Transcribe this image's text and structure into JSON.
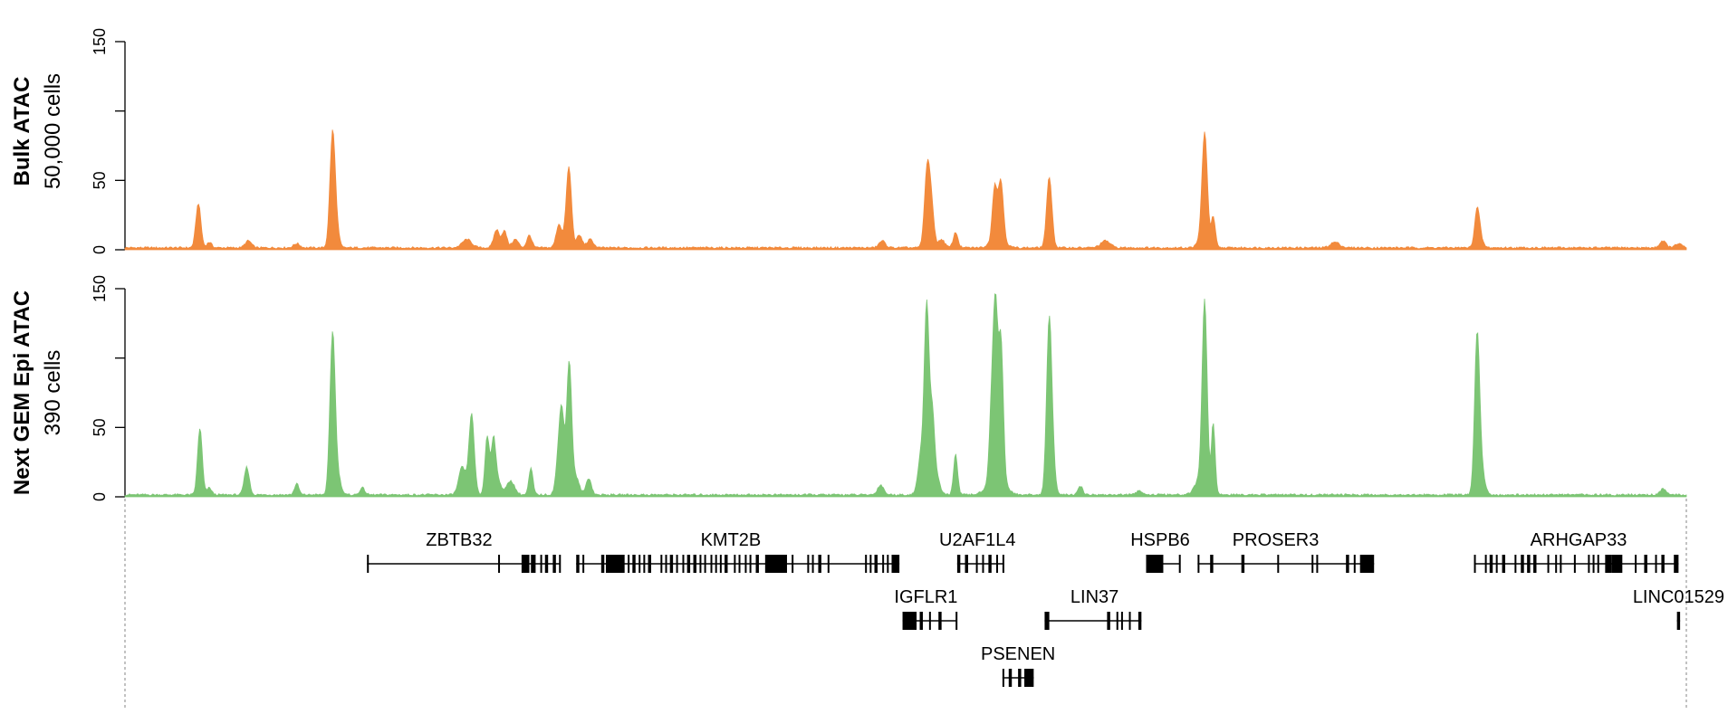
{
  "chart_data": [
    {
      "type": "area",
      "title": "Bulk ATAC",
      "subtitle": "50,000 cells",
      "color": "#F28A3C",
      "ylim": [
        0,
        150
      ],
      "yticks": [
        0,
        50,
        150
      ],
      "x_range": [
        0,
        1000
      ],
      "peaks": [
        {
          "x": 47,
          "height": 32,
          "width": 1.6
        },
        {
          "x": 54,
          "height": 4,
          "width": 1.5
        },
        {
          "x": 79,
          "height": 5,
          "width": 2
        },
        {
          "x": 110,
          "height": 3,
          "width": 2
        },
        {
          "x": 133,
          "height": 84,
          "width": 1.7
        },
        {
          "x": 136,
          "height": 8,
          "width": 1.5
        },
        {
          "x": 219,
          "height": 6,
          "width": 3
        },
        {
          "x": 238,
          "height": 13,
          "width": 1.8
        },
        {
          "x": 243,
          "height": 12,
          "width": 1.6
        },
        {
          "x": 250,
          "height": 6,
          "width": 2
        },
        {
          "x": 259,
          "height": 9,
          "width": 1.6
        },
        {
          "x": 278,
          "height": 17,
          "width": 1.8
        },
        {
          "x": 283,
          "height": 12,
          "width": 1.6
        },
        {
          "x": 284.5,
          "height": 50,
          "width": 1.6
        },
        {
          "x": 291,
          "height": 9,
          "width": 1.8
        },
        {
          "x": 298,
          "height": 6,
          "width": 2
        },
        {
          "x": 485,
          "height": 5,
          "width": 2
        },
        {
          "x": 514,
          "height": 61,
          "width": 1.8
        },
        {
          "x": 517,
          "height": 20,
          "width": 1.5
        },
        {
          "x": 523,
          "height": 6,
          "width": 2
        },
        {
          "x": 532,
          "height": 11,
          "width": 1.5
        },
        {
          "x": 557,
          "height": 37,
          "width": 1.5
        },
        {
          "x": 561,
          "height": 41,
          "width": 1.6
        },
        {
          "x": 559,
          "height": 8,
          "width": 4
        },
        {
          "x": 592,
          "height": 51,
          "width": 1.7
        },
        {
          "x": 628,
          "height": 5,
          "width": 3
        },
        {
          "x": 690,
          "height": 5,
          "width": 3
        },
        {
          "x": 691.5,
          "height": 79,
          "width": 1.7
        },
        {
          "x": 697,
          "height": 22,
          "width": 1.3
        },
        {
          "x": 775,
          "height": 4,
          "width": 3
        },
        {
          "x": 866,
          "height": 26,
          "width": 1.6
        },
        {
          "x": 868,
          "height": 5,
          "width": 2
        },
        {
          "x": 985,
          "height": 5,
          "width": 2
        },
        {
          "x": 995,
          "height": 3,
          "width": 2
        }
      ]
    },
    {
      "type": "area",
      "title": "Next GEM Epi ATAC",
      "subtitle": "390 cells",
      "color": "#7CC574",
      "ylim": [
        0,
        150
      ],
      "yticks": [
        0,
        50,
        150
      ],
      "x_range": [
        0,
        1000
      ],
      "peaks": [
        {
          "x": 48,
          "height": 48,
          "width": 1.5
        },
        {
          "x": 54,
          "height": 5,
          "width": 1.5
        },
        {
          "x": 78,
          "height": 20,
          "width": 1.6
        },
        {
          "x": 110,
          "height": 8,
          "width": 1.4
        },
        {
          "x": 133,
          "height": 118,
          "width": 1.7
        },
        {
          "x": 137,
          "height": 10,
          "width": 1.7
        },
        {
          "x": 152,
          "height": 5,
          "width": 1.6
        },
        {
          "x": 216,
          "height": 20,
          "width": 2.2
        },
        {
          "x": 222,
          "height": 58,
          "width": 1.7
        },
        {
          "x": 232,
          "height": 42,
          "width": 1.4
        },
        {
          "x": 236,
          "height": 39,
          "width": 1.4
        },
        {
          "x": 239,
          "height": 10,
          "width": 2
        },
        {
          "x": 247,
          "height": 10,
          "width": 2.5
        },
        {
          "x": 260,
          "height": 19,
          "width": 1.3
        },
        {
          "x": 278,
          "height": 30,
          "width": 1.8
        },
        {
          "x": 280,
          "height": 46,
          "width": 1.5
        },
        {
          "x": 284.5,
          "height": 96,
          "width": 1.6
        },
        {
          "x": 289,
          "height": 12,
          "width": 2
        },
        {
          "x": 297,
          "height": 12,
          "width": 1.7
        },
        {
          "x": 484,
          "height": 7,
          "width": 2
        },
        {
          "x": 510,
          "height": 30,
          "width": 2
        },
        {
          "x": 513.5,
          "height": 131,
          "width": 1.5
        },
        {
          "x": 517,
          "height": 55,
          "width": 1.5
        },
        {
          "x": 520,
          "height": 12,
          "width": 2
        },
        {
          "x": 532,
          "height": 29,
          "width": 1.3
        },
        {
          "x": 555,
          "height": 50,
          "width": 1.4
        },
        {
          "x": 557.5,
          "height": 115,
          "width": 1.4
        },
        {
          "x": 561,
          "height": 100,
          "width": 1.5
        },
        {
          "x": 558,
          "height": 15,
          "width": 5
        },
        {
          "x": 592,
          "height": 128,
          "width": 1.7
        },
        {
          "x": 595,
          "height": 10,
          "width": 1.5
        },
        {
          "x": 612,
          "height": 6,
          "width": 1.5
        },
        {
          "x": 650,
          "height": 3,
          "width": 2
        },
        {
          "x": 688,
          "height": 10,
          "width": 3
        },
        {
          "x": 691.5,
          "height": 136,
          "width": 1.6
        },
        {
          "x": 697,
          "height": 52,
          "width": 1.2
        },
        {
          "x": 866,
          "height": 114,
          "width": 1.6
        },
        {
          "x": 869,
          "height": 16,
          "width": 2
        },
        {
          "x": 985,
          "height": 4,
          "width": 2
        }
      ]
    }
  ],
  "genes": {
    "x_range": [
      0,
      1000
    ],
    "items": [
      {
        "name": "ZBTB32",
        "row": 0,
        "start": 155,
        "end": 279,
        "label_x": 214,
        "exons": [
          [
            155,
            156
          ],
          [
            239,
            240
          ],
          [
            254,
            259
          ],
          [
            260,
            263
          ],
          [
            266,
            267
          ],
          [
            269,
            271
          ],
          [
            274,
            276
          ],
          [
            278,
            279
          ]
        ]
      },
      {
        "name": "KMT2B",
        "row": 0,
        "start": 289,
        "end": 496,
        "label_x": 388,
        "exons": [
          [
            289,
            291
          ],
          [
            293,
            294
          ],
          [
            305,
            307
          ],
          [
            308,
            320
          ],
          [
            322,
            323
          ],
          [
            325,
            327
          ],
          [
            329,
            330
          ],
          [
            332,
            333
          ],
          [
            335,
            337
          ],
          [
            343,
            344
          ],
          [
            346,
            347
          ],
          [
            349,
            351
          ],
          [
            353,
            354
          ],
          [
            357,
            358
          ],
          [
            360,
            362
          ],
          [
            364,
            366
          ],
          [
            368,
            369
          ],
          [
            371,
            372
          ],
          [
            375,
            376
          ],
          [
            378,
            379
          ],
          [
            381,
            382
          ],
          [
            384,
            386
          ],
          [
            390,
            391
          ],
          [
            393,
            394
          ],
          [
            397,
            398
          ],
          [
            400,
            401
          ],
          [
            404,
            406
          ],
          [
            410,
            424
          ],
          [
            427,
            428
          ],
          [
            437,
            438
          ],
          [
            440,
            441
          ],
          [
            444,
            446
          ],
          [
            450,
            451
          ],
          [
            474,
            475
          ],
          [
            477,
            478
          ],
          [
            480,
            482
          ],
          [
            485,
            486
          ],
          [
            488,
            489
          ],
          [
            491,
            496
          ]
        ]
      },
      {
        "name": "U2AF1L4",
        "row": 0,
        "start": 533,
        "end": 563,
        "label_x": 546,
        "exons": [
          [
            533,
            535
          ],
          [
            538,
            540
          ],
          [
            545,
            546
          ],
          [
            549,
            550
          ],
          [
            553,
            555
          ],
          [
            558,
            559
          ],
          [
            562,
            563
          ]
        ]
      },
      {
        "name": "HSPB6",
        "row": 0,
        "start": 654,
        "end": 676,
        "label_x": 663,
        "exons": [
          [
            654,
            665
          ],
          [
            675,
            676
          ]
        ]
      },
      {
        "name": "PROSER3",
        "row": 0,
        "start": 687,
        "end": 800,
        "label_x": 737,
        "exons": [
          [
            687,
            688
          ],
          [
            695,
            697
          ],
          [
            715,
            717
          ],
          [
            738,
            739
          ],
          [
            760,
            761
          ],
          [
            763,
            764
          ],
          [
            782,
            784
          ],
          [
            787,
            788
          ],
          [
            791,
            800
          ]
        ]
      },
      {
        "name": "ARHGAP33",
        "row": 0,
        "start": 864,
        "end": 995,
        "label_x": 931,
        "exons": [
          [
            864,
            865
          ],
          [
            871,
            872
          ],
          [
            874,
            876
          ],
          [
            878,
            879
          ],
          [
            882,
            884
          ],
          [
            890,
            891
          ],
          [
            894,
            896
          ],
          [
            898,
            900
          ],
          [
            902,
            904
          ],
          [
            911,
            912
          ],
          [
            916,
            917
          ],
          [
            919,
            920
          ],
          [
            928,
            929
          ],
          [
            937,
            938
          ],
          [
            940,
            941
          ],
          [
            943,
            944
          ],
          [
            948,
            952
          ],
          [
            952,
            959
          ],
          [
            967,
            968
          ],
          [
            973,
            975
          ],
          [
            980,
            981
          ],
          [
            984,
            986
          ],
          [
            992,
            995
          ]
        ]
      },
      {
        "name": "IGFLR1",
        "row": 1,
        "start": 498,
        "end": 533,
        "label_x": 513,
        "exons": [
          [
            498,
            507
          ],
          [
            509,
            511
          ],
          [
            515,
            516
          ],
          [
            521,
            523
          ],
          [
            532,
            533
          ]
        ]
      },
      {
        "name": "LIN37",
        "row": 1,
        "start": 589,
        "end": 651,
        "label_x": 621,
        "exons": [
          [
            589,
            592
          ],
          [
            629,
            631
          ],
          [
            635,
            636
          ],
          [
            638,
            639
          ],
          [
            643,
            644
          ],
          [
            649,
            651
          ]
        ]
      },
      {
        "name": "LINC01529",
        "row": 1,
        "start": 994,
        "end": 996,
        "label_x": 996,
        "exons": [
          [
            994,
            996
          ]
        ]
      },
      {
        "name": "PSENEN",
        "row": 2,
        "start": 562,
        "end": 582,
        "label_x": 572,
        "exons": [
          [
            562,
            563
          ],
          [
            566,
            568
          ],
          [
            572,
            574
          ],
          [
            576,
            582
          ]
        ]
      }
    ]
  }
}
